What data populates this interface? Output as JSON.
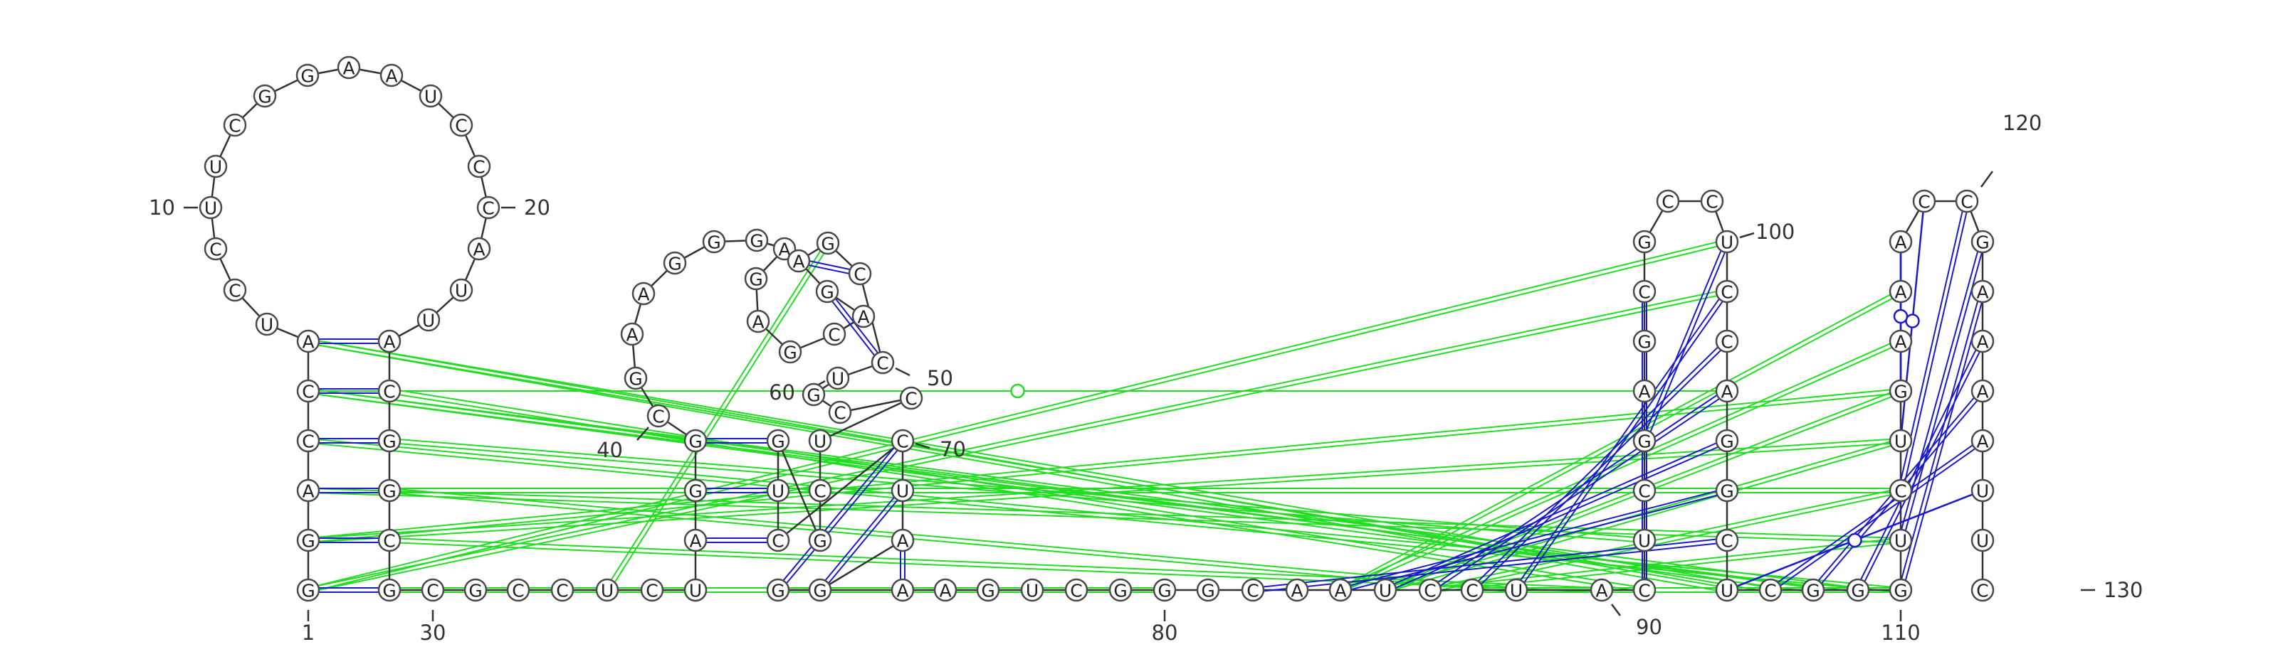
{
  "colors": {
    "canonical_pair": "#1a1acc",
    "tertiary_interaction": "#22dd22",
    "backbone": "#333333",
    "nucleotide_border": "#4a4a4a"
  },
  "sequence": "GGACCAUCCUUCGGAAUCCCAUUACGGCGCGCCUCCUAGGCGAAGGGAGAGCAGAGCCUGCCUCGGUCCUAGGAAGUCGGGCAAUCCUACUCGAGCGCCUCCAGGCUCGGGUCUGAAACCGAAAAUUC",
  "number_labels": [
    {
      "n": 1,
      "text": "1"
    },
    {
      "n": 10,
      "text": "10"
    },
    {
      "n": 20,
      "text": "20"
    },
    {
      "n": 30,
      "text": "30"
    },
    {
      "n": 40,
      "text": "40"
    },
    {
      "n": 50,
      "text": "50"
    },
    {
      "n": 60,
      "text": "60"
    },
    {
      "n": 70,
      "text": "70"
    },
    {
      "n": 80,
      "text": "80"
    },
    {
      "n": 90,
      "text": "90"
    },
    {
      "n": 100,
      "text": "100"
    },
    {
      "n": 110,
      "text": "110"
    },
    {
      "n": 120,
      "text": "120"
    },
    {
      "n": 130,
      "text": "130"
    }
  ],
  "base_pairs": [
    {
      "i": 1,
      "j": 29,
      "type": "canonical"
    },
    {
      "i": 2,
      "j": 28,
      "type": "canonical"
    },
    {
      "i": 3,
      "j": 27,
      "type": "canonical"
    },
    {
      "i": 4,
      "j": 26,
      "type": "canonical"
    },
    {
      "i": 5,
      "j": 25,
      "type": "canonical"
    },
    {
      "i": 6,
      "j": 24,
      "type": "canonical"
    },
    {
      "i": 40,
      "j": 66,
      "type": "canonical"
    },
    {
      "i": 39,
      "j": 67,
      "type": "canonical"
    },
    {
      "i": 38,
      "j": 68,
      "type": "canonical"
    },
    {
      "i": 69,
      "j": 73,
      "type": "canonical"
    },
    {
      "i": 70,
      "j": 72,
      "type": "canonical"
    },
    {
      "i": 71,
      "j": 74,
      "type": "canonical"
    },
    {
      "i": 54,
      "j": 58,
      "type": "canonical"
    },
    {
      "i": 55,
      "j": 57,
      "type": "canonical"
    },
    {
      "i": 90,
      "j": 96,
      "type": "canonical"
    },
    {
      "i": 91,
      "j": 95,
      "type": "canonical"
    },
    {
      "i": 92,
      "j": 94,
      "type": "canonical"
    },
    {
      "i": 93,
      "j": 100,
      "type": "canonical"
    },
    {
      "i": 88,
      "j": 101,
      "type": "canonical"
    },
    {
      "i": 87,
      "j": 102,
      "type": "canonical"
    },
    {
      "i": 86,
      "j": 103,
      "type": "canonical"
    },
    {
      "i": 85,
      "j": 104,
      "type": "canonical"
    },
    {
      "i": 84,
      "j": 105,
      "type": "canonical"
    },
    {
      "i": 82,
      "j": 106,
      "type": "canonical"
    },
    {
      "i": 108,
      "j": 125,
      "type": "canonical"
    },
    {
      "i": 109,
      "j": 124,
      "type": "canonical"
    },
    {
      "i": 110,
      "j": 123,
      "type": "canonical"
    },
    {
      "i": 111,
      "j": 122,
      "type": "canonical"
    },
    {
      "i": 112,
      "j": 121,
      "type": "canonical"
    },
    {
      "i": 113,
      "j": 120,
      "type": "canonical"
    },
    {
      "i": 114,
      "j": 119,
      "type": "wobble"
    },
    {
      "i": 115,
      "j": 118,
      "type": "wobble"
    },
    {
      "i": 107,
      "j": 126,
      "type": "wobble"
    }
  ],
  "tertiary_interactions": [
    {
      "i": 2,
      "j": 114
    },
    {
      "i": 2,
      "j": 115
    },
    {
      "i": 3,
      "j": 112
    },
    {
      "i": 3,
      "j": 113
    },
    {
      "i": 4,
      "j": 111
    },
    {
      "i": 5,
      "j": 109
    },
    {
      "i": 5,
      "j": 110
    },
    {
      "i": 6,
      "j": 107
    },
    {
      "i": 6,
      "j": 108
    },
    {
      "i": 1,
      "j": 80
    },
    {
      "i": 29,
      "j": 37
    },
    {
      "i": 29,
      "j": 36
    },
    {
      "i": 34,
      "j": 56
    },
    {
      "i": 84,
      "j": 117
    },
    {
      "i": 84,
      "j": 116
    },
    {
      "i": 85,
      "j": 115
    },
    {
      "i": 85,
      "j": 114
    },
    {
      "i": 86,
      "j": 113
    },
    {
      "i": 86,
      "j": 112
    },
    {
      "i": 87,
      "j": 111
    },
    {
      "i": 89,
      "j": 110
    },
    {
      "i": 89,
      "j": 109
    },
    {
      "i": 1,
      "j": 100
    },
    {
      "i": 1,
      "j": 101
    },
    {
      "i": 25,
      "j": 90
    },
    {
      "i": 26,
      "j": 91
    },
    {
      "i": 27,
      "j": 88
    },
    {
      "i": 28,
      "j": 89
    }
  ]
}
